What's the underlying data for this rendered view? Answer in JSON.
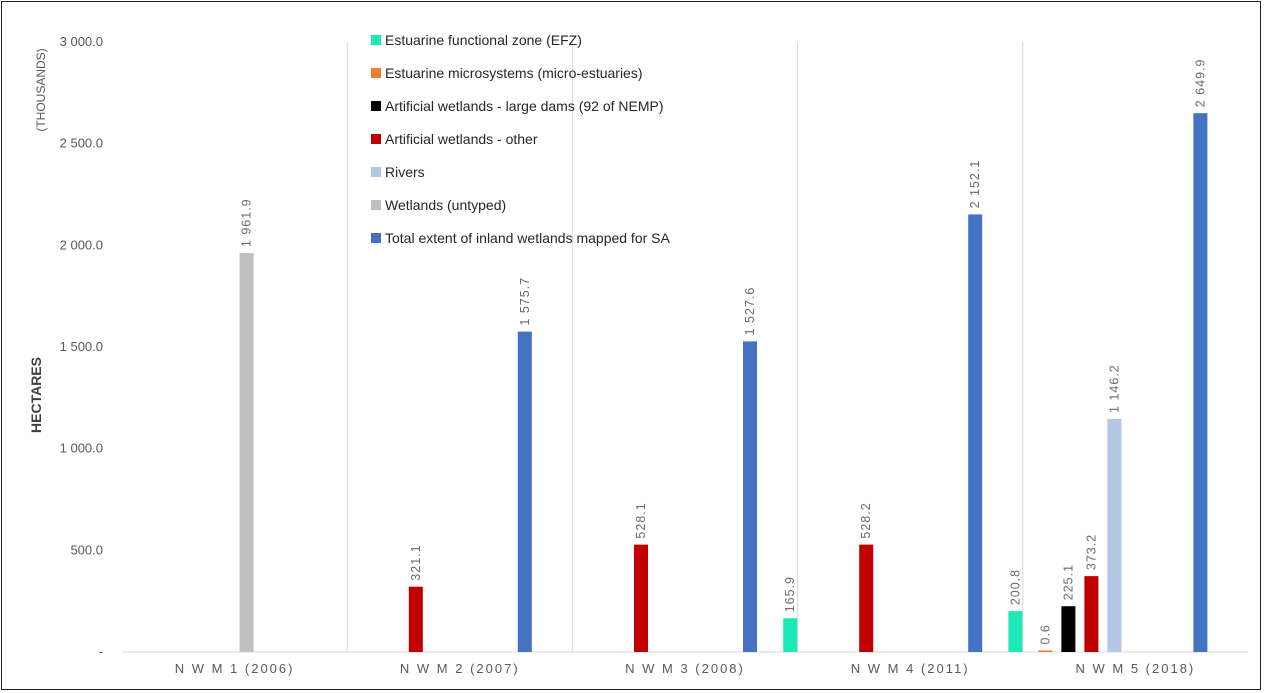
{
  "chart_data": {
    "type": "bar",
    "ylabel": "HECTARES",
    "yunit": "(THOUSANDS)",
    "ylim": [
      0,
      3000
    ],
    "yticks": [
      "-",
      "500.0",
      "1 000.0",
      "1 500.0",
      "2 000.0",
      "2 500.0",
      "3 000.0"
    ],
    "ytick_values": [
      0,
      500,
      1000,
      1500,
      2000,
      2500,
      3000
    ],
    "categories": [
      "N W M 1 (2006)",
      "N W M 2 (2007)",
      "N W M 3 (2008)",
      "N W M 4 (2011)",
      "N W M 5 (2018)"
    ],
    "legend_position": "top-center",
    "series": [
      {
        "name": "Estuarine functional zone (EFZ)",
        "color": "#1de9b6",
        "values": [
          null,
          null,
          null,
          165.9,
          200.8
        ],
        "labels": [
          null,
          null,
          null,
          "165.9",
          "200.8"
        ]
      },
      {
        "name": "Estuarine microsystems (micro-estuaries)",
        "color": "#ed7d31",
        "values": [
          null,
          null,
          null,
          null,
          0.6
        ],
        "labels": [
          null,
          null,
          null,
          null,
          "0.6"
        ]
      },
      {
        "name": "Artificial wetlands - large dams (92 of NEMP)",
        "color": "#000000",
        "values": [
          null,
          null,
          null,
          null,
          225.1
        ],
        "labels": [
          null,
          null,
          null,
          null,
          "225.1"
        ]
      },
      {
        "name": "Artificial wetlands - other",
        "color": "#c00000",
        "values": [
          null,
          321.1,
          528.1,
          528.2,
          373.2
        ],
        "labels": [
          null,
          "321.1",
          "528.1",
          "528.2",
          "373.2"
        ]
      },
      {
        "name": "Rivers",
        "color": "#b4c7e7",
        "values": [
          null,
          null,
          null,
          null,
          1146.2
        ],
        "labels": [
          null,
          null,
          null,
          null,
          "1 146.2"
        ]
      },
      {
        "name": "Wetlands (untyped)",
        "color": "#bfbfbf",
        "values": [
          1961.9,
          null,
          null,
          null,
          null
        ],
        "labels": [
          "1 961.9",
          null,
          null,
          null,
          null
        ]
      },
      {
        "name": "Total extent of inland wetlands mapped for SA",
        "color": "#4472c4",
        "values": [
          null,
          1575.7,
          1527.6,
          2152.1,
          2649.9
        ],
        "labels": [
          null,
          "1 575.7",
          "1 527.6",
          "2 152.1",
          "2 649.9"
        ]
      }
    ]
  }
}
